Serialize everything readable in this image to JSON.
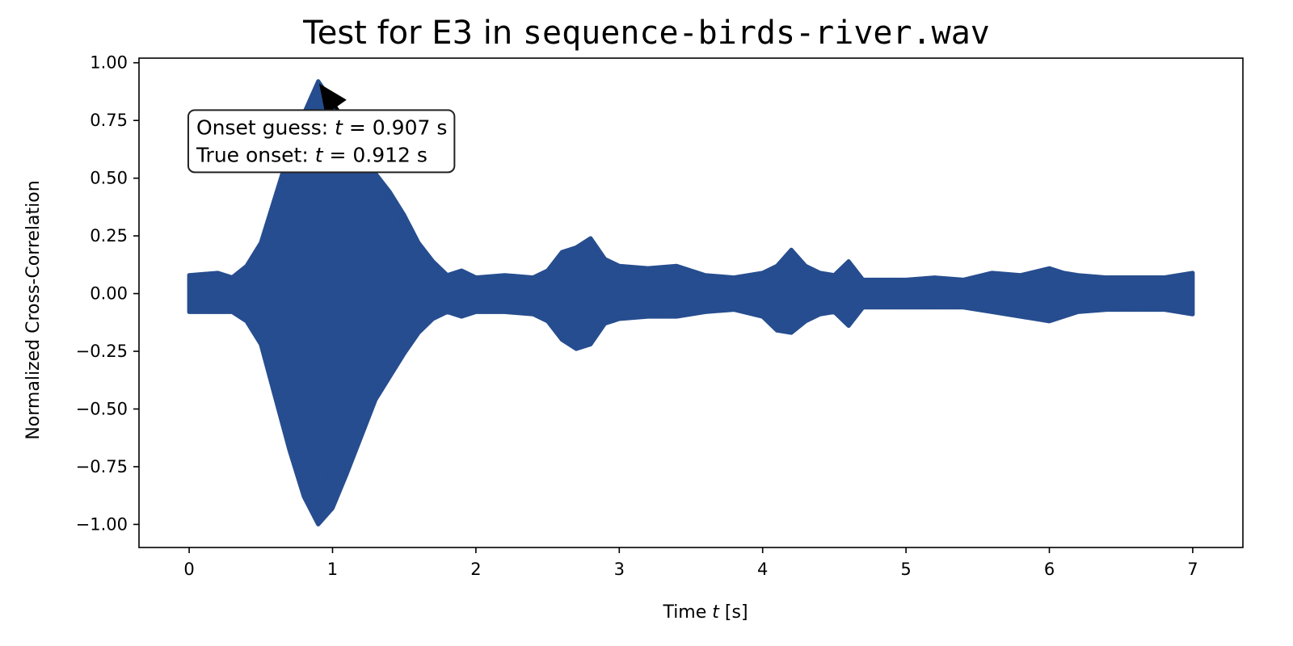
{
  "chart_data": {
    "type": "line",
    "title": {
      "prefix": "Test for E3 in ",
      "filename": "sequence-birds-river.wav"
    },
    "xlabel": {
      "before": "Time ",
      "var": "t",
      "after": " [s]"
    },
    "ylabel": "Normalized Cross-Correlation",
    "xlim": [
      -0.35,
      7.35
    ],
    "ylim": [
      -1.1,
      1.02
    ],
    "xticks": [
      0,
      1,
      2,
      3,
      4,
      5,
      6,
      7
    ],
    "xtick_labels": [
      "0",
      "1",
      "2",
      "3",
      "4",
      "5",
      "6",
      "7"
    ],
    "yticks": [
      1.0,
      0.75,
      0.5,
      0.25,
      0.0,
      -0.25,
      -0.5,
      -0.75,
      -1.0
    ],
    "ytick_labels": [
      "1.00",
      "0.75",
      "0.50",
      "0.25",
      "0.00",
      "−0.25",
      "−0.50",
      "−0.75",
      "−1.00"
    ],
    "grid": false,
    "series_color": "#264d8f",
    "envelope": {
      "t": [
        0,
        0.2,
        0.3,
        0.4,
        0.5,
        0.6,
        0.7,
        0.8,
        0.9,
        1.0,
        1.1,
        1.2,
        1.3,
        1.4,
        1.5,
        1.6,
        1.7,
        1.8,
        1.9,
        2.0,
        2.2,
        2.4,
        2.5,
        2.6,
        2.7,
        2.8,
        2.9,
        3.0,
        3.2,
        3.4,
        3.6,
        3.8,
        4.0,
        4.1,
        4.2,
        4.3,
        4.4,
        4.5,
        4.6,
        4.7,
        4.8,
        5.0,
        5.2,
        5.4,
        5.6,
        5.8,
        6.0,
        6.1,
        6.2,
        6.4,
        6.6,
        6.8,
        7.0
      ],
      "upper": [
        0.08,
        0.09,
        0.07,
        0.12,
        0.22,
        0.42,
        0.62,
        0.78,
        0.92,
        0.83,
        0.72,
        0.62,
        0.52,
        0.44,
        0.34,
        0.22,
        0.14,
        0.08,
        0.1,
        0.07,
        0.08,
        0.07,
        0.1,
        0.18,
        0.2,
        0.24,
        0.15,
        0.12,
        0.11,
        0.12,
        0.08,
        0.07,
        0.09,
        0.12,
        0.19,
        0.12,
        0.09,
        0.08,
        0.14,
        0.06,
        0.06,
        0.06,
        0.07,
        0.06,
        0.09,
        0.08,
        0.11,
        0.09,
        0.08,
        0.07,
        0.07,
        0.07,
        0.09
      ],
      "lower": [
        -0.08,
        -0.08,
        -0.08,
        -0.12,
        -0.22,
        -0.45,
        -0.68,
        -0.88,
        -1.0,
        -0.93,
        -0.78,
        -0.62,
        -0.46,
        -0.36,
        -0.26,
        -0.17,
        -0.11,
        -0.08,
        -0.1,
        -0.08,
        -0.08,
        -0.09,
        -0.12,
        -0.2,
        -0.24,
        -0.22,
        -0.13,
        -0.11,
        -0.1,
        -0.1,
        -0.08,
        -0.07,
        -0.1,
        -0.16,
        -0.17,
        -0.12,
        -0.09,
        -0.08,
        -0.14,
        -0.06,
        -0.06,
        -0.06,
        -0.06,
        -0.06,
        -0.08,
        -0.1,
        -0.12,
        -0.1,
        -0.08,
        -0.07,
        -0.07,
        -0.07,
        -0.09
      ]
    },
    "annotation": {
      "line1": {
        "before": "Onset guess: ",
        "var": "t",
        "after": " = 0.907 s"
      },
      "line2": {
        "before": "True onset: ",
        "var": "t",
        "after": " = 0.912 s"
      },
      "arrow_target": [
        0.907,
        0.91
      ],
      "arrow_tail": [
        1.1,
        0.74
      ],
      "box_anchor": [
        0.05,
        0.69
      ]
    }
  }
}
